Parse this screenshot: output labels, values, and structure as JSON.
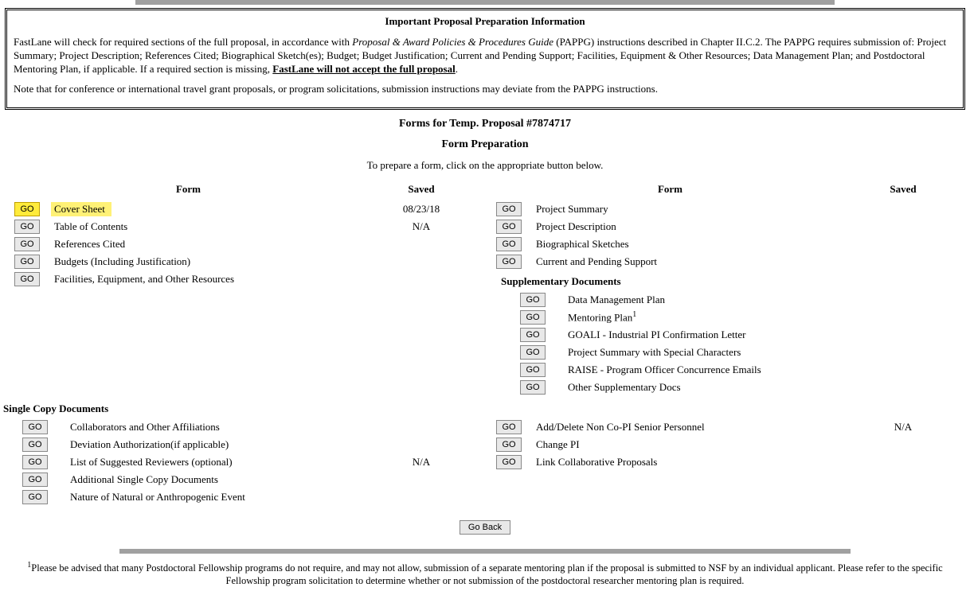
{
  "info": {
    "title": "Important Proposal Preparation Information",
    "p1_a": "FastLane will check for required sections of the full proposal, in accordance with ",
    "p1_em": "Proposal & Award Policies & Procedures Guide",
    "p1_b": " (PAPPG) instructions described in Chapter II.C.2. The PAPPG requires submission of: Project Summary; Project Description; References Cited; Biographical Sketch(es); Budget; Budget Justification; Current and Pending Support; Facilities, Equipment & Other Resources; Data Management Plan; and Postdoctoral Mentoring Plan, if applicable. If a required section is missing, ",
    "p1_u": "FastLane will not accept the full proposal",
    "p1_c": ".",
    "p2": "Note that for conference or international travel grant proposals, or program solicitations, submission instructions may deviate from the PAPPG instructions."
  },
  "head1": "Forms for Temp. Proposal #7874717",
  "head2": "Form Preparation",
  "instr": "To prepare a form, click on the appropriate button below.",
  "th_form": "Form",
  "th_saved": "Saved",
  "go": "GO",
  "left": [
    {
      "label": "Cover Sheet",
      "saved": "08/23/18",
      "hl": true
    },
    {
      "label": "Table of Contents",
      "saved": "N/A"
    },
    {
      "label": "References Cited"
    },
    {
      "label": "Budgets (Including Justification)"
    },
    {
      "label": "Facilities, Equipment, and Other Resources"
    }
  ],
  "right": [
    {
      "label": "Project Summary"
    },
    {
      "label": "Project Description"
    },
    {
      "label": "Biographical Sketches"
    },
    {
      "label": "Current and Pending Support"
    }
  ],
  "supp_title": "Supplementary Documents",
  "supp": [
    {
      "label": "Data Management Plan"
    },
    {
      "label": "Mentoring Plan",
      "sup": "1"
    },
    {
      "label": "GOALI - Industrial PI Confirmation Letter"
    },
    {
      "label": "Project Summary with Special Characters"
    },
    {
      "label": "RAISE - Program Officer Concurrence Emails"
    },
    {
      "label": "Other Supplementary Docs"
    }
  ],
  "sc_title": "Single Copy Documents",
  "sc_left": [
    {
      "label": "Collaborators and Other Affiliations"
    },
    {
      "label": "Deviation Authorization(if applicable)"
    },
    {
      "label": "List of Suggested Reviewers (optional)",
      "saved": "N/A"
    },
    {
      "label": "Additional Single Copy Documents"
    },
    {
      "label": "Nature of Natural or Anthropogenic Event"
    }
  ],
  "sc_right": [
    {
      "label": "Add/Delete Non Co-PI Senior Personnel",
      "saved": "N/A"
    },
    {
      "label": "Change PI"
    },
    {
      "label": "Link Collaborative Proposals"
    }
  ],
  "go_back": "Go Back",
  "footnote_sup": "1",
  "footnote": "Please be advised that many Postdoctoral Fellowship programs do not require, and may not allow, submission of a separate mentoring plan if the proposal is submitted to NSF by an individual applicant. Please refer to the specific Fellowship program solicitation to determine whether or not submission of the postdoctoral researcher mentoring plan is required."
}
